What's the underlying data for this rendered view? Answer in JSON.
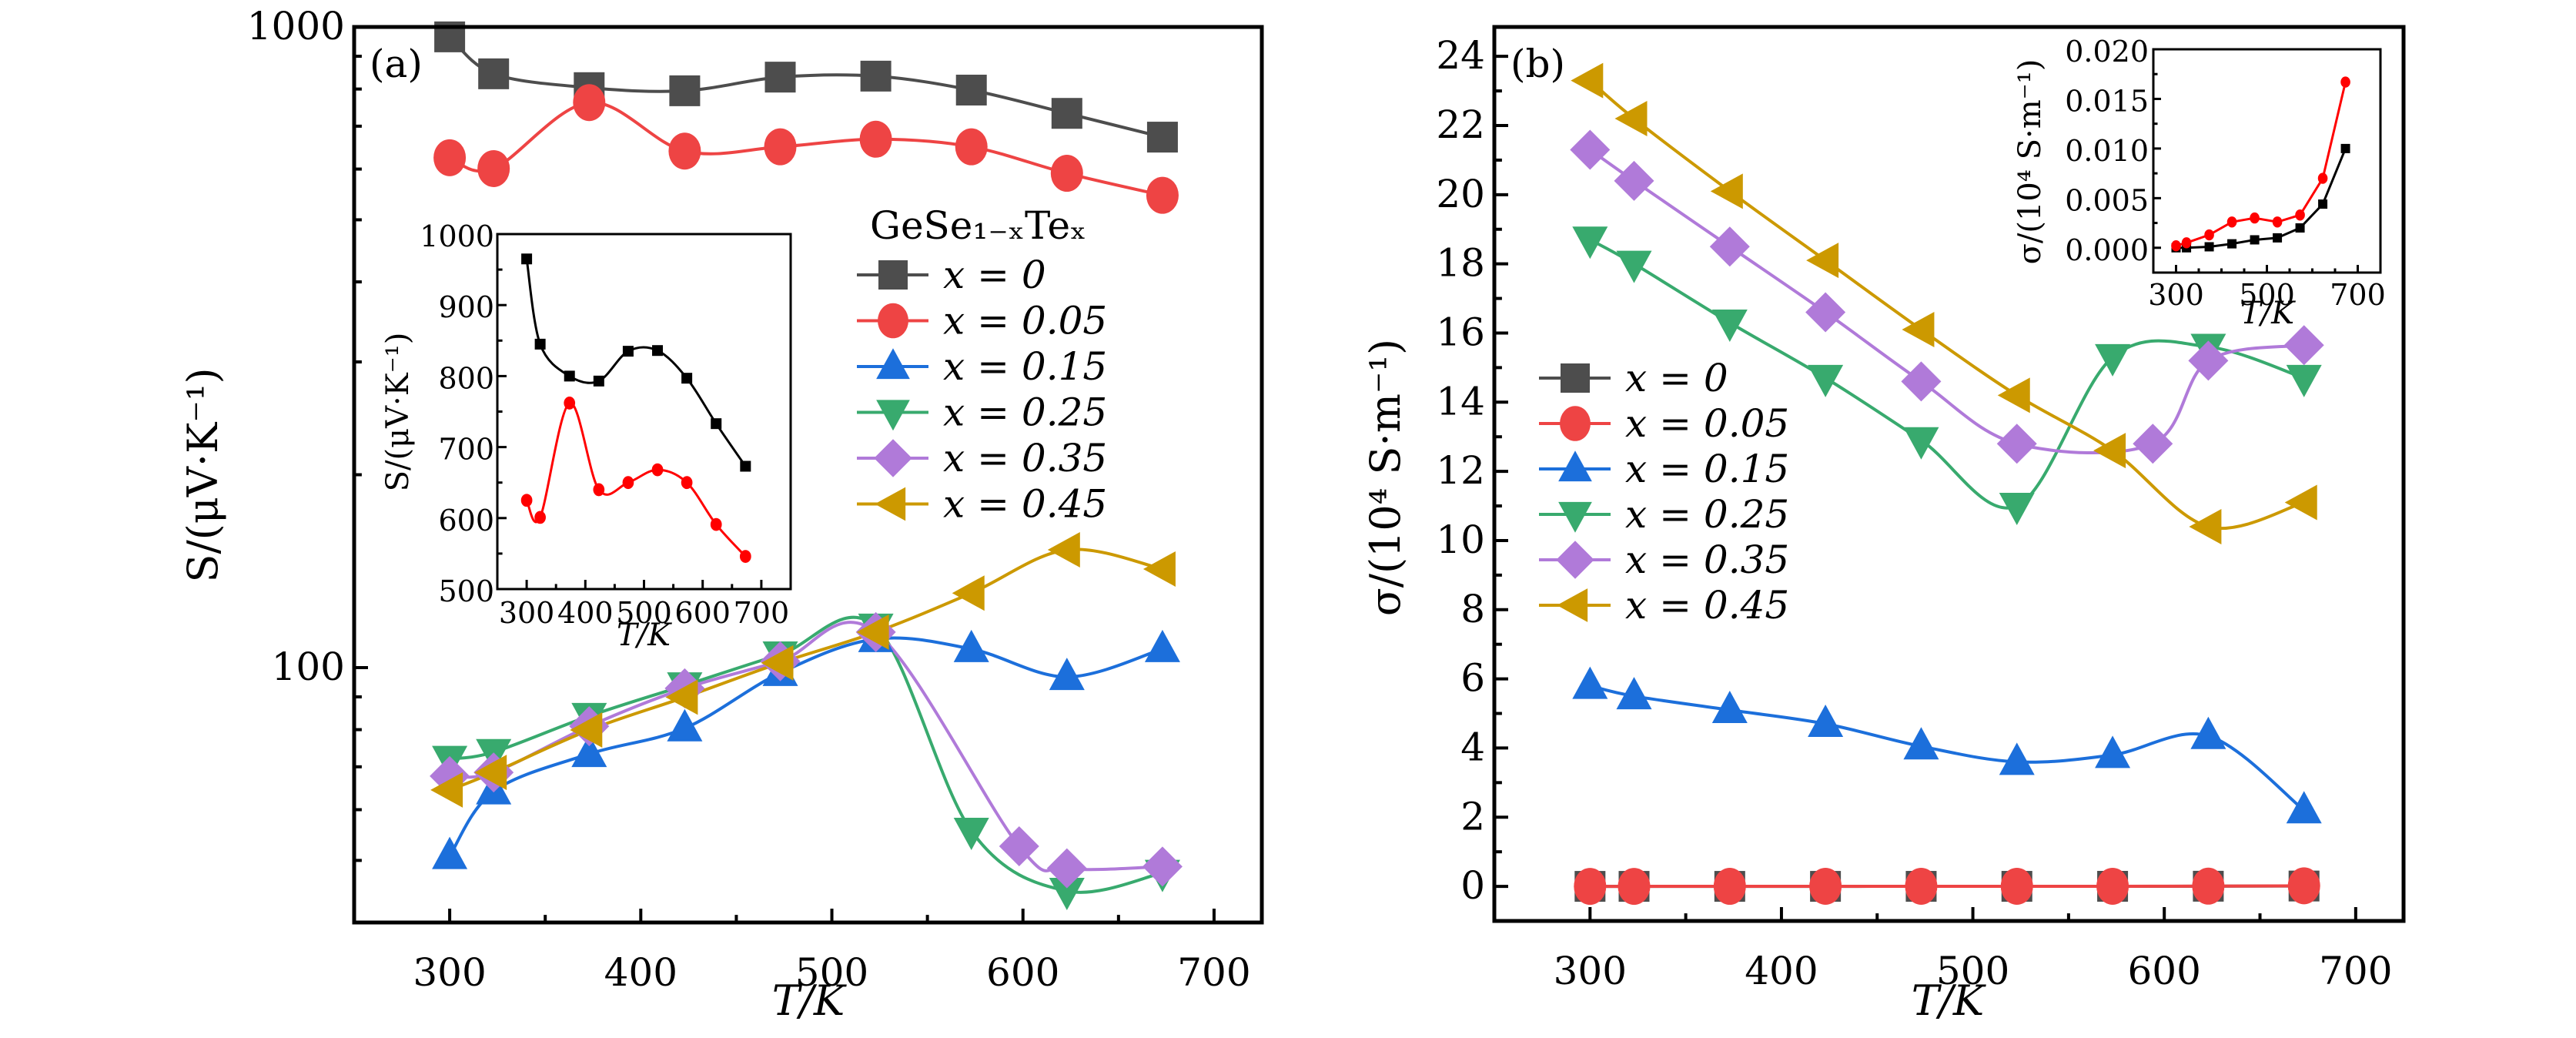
{
  "chart_data": [
    {
      "id": "a",
      "type": "line",
      "panel_label": "(a)",
      "title": "",
      "xlabel": "T/K",
      "ylabel": "S/(μV·K⁻¹)",
      "xlim": [
        250,
        725
      ],
      "ylim": [
        40,
        1000
      ],
      "yscale": "log",
      "xticks": [
        300,
        400,
        500,
        600,
        700
      ],
      "yticks_labeled": [
        100,
        1000
      ],
      "grid": false,
      "legend": {
        "title": "GeSe₁₋ₓTeₓ",
        "placement": "right-middle",
        "entries": [
          "x = 0",
          "x = 0.05",
          "x = 0.15",
          "x = 0.25",
          "x = 0.35",
          "x = 0.45"
        ]
      },
      "series": [
        {
          "name": "x = 0",
          "marker": "square",
          "color": "#4d4d4d",
          "x": [
            300,
            323,
            373,
            423,
            473,
            523,
            573,
            623,
            673
          ],
          "y": [
            965,
            845,
            804,
            795,
            835,
            838,
            797,
            733,
            673
          ]
        },
        {
          "name": "x = 0.05",
          "marker": "circle",
          "color": "#ee4444",
          "x": [
            300,
            323,
            373,
            423,
            473,
            523,
            573,
            623,
            673
          ],
          "y": [
            625,
            601,
            762,
            640,
            650,
            668,
            650,
            591,
            546
          ]
        },
        {
          "name": "x = 0.15",
          "marker": "triangle-up",
          "color": "#1c6fdb",
          "x": [
            300,
            323,
            373,
            423,
            473,
            523,
            573,
            623,
            673
          ],
          "y": [
            50.8,
            64.1,
            73.3,
            80.4,
            98.1,
            110.8,
            106.9,
            96.7,
            106.9
          ]
        },
        {
          "name": "x = 0.25",
          "marker": "triangle-down",
          "color": "#38aa6e",
          "x": [
            300,
            323,
            373,
            423,
            473,
            523,
            573,
            623,
            673
          ],
          "y": [
            72.0,
            73.8,
            84.0,
            93.8,
            104.8,
            115.8,
            55.6,
            44.8,
            47.8
          ]
        },
        {
          "name": "x = 0.35",
          "marker": "diamond",
          "color": "#b07ad9",
          "x": [
            300,
            323,
            373,
            423,
            473,
            523,
            598,
            623,
            673
          ],
          "y": [
            67.7,
            68.6,
            81.0,
            92.8,
            102.3,
            113.6,
            52.6,
            48.6,
            48.9
          ]
        },
        {
          "name": "x = 0.45",
          "marker": "triangle-left",
          "color": "#cc9900",
          "x": [
            300,
            323,
            373,
            423,
            473,
            523,
            573,
            623,
            673
          ],
          "y": [
            64.4,
            68.6,
            79.9,
            89.9,
            101.7,
            113.6,
            130.7,
            152.7,
            142.5
          ]
        }
      ],
      "inset": {
        "type": "line",
        "xlabel": "T/K",
        "ylabel": "S/(μV·K⁻¹)",
        "xlim": [
          250,
          750
        ],
        "ylim": [
          500,
          1000
        ],
        "xticks": [
          300,
          400,
          500,
          600,
          700
        ],
        "yticks": [
          500,
          600,
          700,
          800,
          900,
          1000
        ],
        "series": [
          {
            "name": "x = 0",
            "marker": "square",
            "color": "#000000",
            "x": [
              300,
              323,
              373,
              423,
              473,
              523,
              573,
              623,
              673
            ],
            "y": [
              965,
              845,
              800,
              793,
              835,
              836,
              797,
              733,
              673
            ]
          },
          {
            "name": "x = 0.05",
            "marker": "circle",
            "color": "#ff0000",
            "x": [
              300,
              323,
              373,
              423,
              473,
              523,
              573,
              623,
              673
            ],
            "y": [
              625,
              601,
              762,
              640,
              650,
              668,
              650,
              591,
              546
            ]
          }
        ]
      }
    },
    {
      "id": "b",
      "type": "line",
      "panel_label": "(b)",
      "title": "",
      "xlabel": "T/K",
      "ylabel": "σ/(10⁴ S·m⁻¹)",
      "xlim": [
        250,
        725
      ],
      "ylim": [
        -1,
        24.85
      ],
      "xticks": [
        300,
        400,
        500,
        600,
        700
      ],
      "yticks": [
        0,
        2,
        4,
        6,
        8,
        10,
        12,
        14,
        16,
        18,
        20,
        22,
        24
      ],
      "grid": false,
      "legend": {
        "placement": "left-middle",
        "entries": [
          "x = 0",
          "x = 0.05",
          "x = 0.15",
          "x = 0.25",
          "x = 0.35",
          "x = 0.45"
        ]
      },
      "series": [
        {
          "name": "x = 0",
          "marker": "square",
          "color": "#4d4d4d",
          "x": [
            300,
            323,
            373,
            423,
            473,
            523,
            573,
            623,
            673
          ],
          "y": [
            0.0,
            0.0,
            0.0001,
            0.0004,
            0.0008,
            0.001,
            0.002,
            0.0044,
            0.01
          ]
        },
        {
          "name": "x = 0.05",
          "marker": "circle",
          "color": "#ee4444",
          "x": [
            300,
            323,
            373,
            423,
            473,
            523,
            573,
            623,
            673
          ],
          "y": [
            0.0002,
            0.0005,
            0.0013,
            0.0026,
            0.003,
            0.0026,
            0.0033,
            0.007,
            0.0167
          ]
        },
        {
          "name": "x = 0.15",
          "marker": "triangle-up",
          "color": "#1c6fdb",
          "x": [
            300,
            323,
            373,
            423,
            473,
            523,
            573,
            623,
            673
          ],
          "y": [
            5.8,
            5.5,
            5.1,
            4.7,
            4.05,
            3.6,
            3.8,
            4.35,
            2.2
          ]
        },
        {
          "name": "x = 0.25",
          "marker": "triangle-down",
          "color": "#38aa6e",
          "x": [
            300,
            323,
            373,
            423,
            473,
            523,
            573,
            623,
            673
          ],
          "y": [
            18.7,
            18.0,
            16.3,
            14.7,
            12.9,
            11.0,
            15.3,
            15.6,
            14.7
          ]
        },
        {
          "name": "x = 0.35",
          "marker": "diamond",
          "color": "#b07ad9",
          "x": [
            300,
            323,
            373,
            423,
            473,
            523,
            594,
            623,
            673
          ],
          "y": [
            21.3,
            20.4,
            18.5,
            16.6,
            14.6,
            12.8,
            12.8,
            15.2,
            15.65
          ]
        },
        {
          "name": "x = 0.45",
          "marker": "triangle-left",
          "color": "#cc9900",
          "x": [
            300,
            323,
            373,
            423,
            473,
            523,
            573,
            623,
            673
          ],
          "y": [
            23.3,
            22.2,
            20.1,
            18.1,
            16.1,
            14.2,
            12.6,
            10.4,
            11.1
          ]
        }
      ],
      "inset": {
        "type": "line",
        "xlabel": "T/K",
        "ylabel": "σ/(10⁴ S·m⁻¹)",
        "xlim": [
          250,
          750
        ],
        "ylim": [
          -0.0025,
          0.02
        ],
        "xticks": [
          300,
          500,
          700
        ],
        "yticks": [
          0.0,
          0.005,
          0.01,
          0.015,
          0.02
        ],
        "ytick_labels": [
          "0.000",
          "0.005",
          "0.010",
          "0.015",
          "0.020"
        ],
        "series": [
          {
            "name": "x = 0",
            "marker": "square",
            "color": "#000000",
            "x": [
              300,
              323,
              373,
              423,
              473,
              523,
              573,
              623,
              673
            ],
            "y": [
              0.0,
              0.0,
              0.0001,
              0.0004,
              0.0008,
              0.001,
              0.002,
              0.0044,
              0.01
            ]
          },
          {
            "name": "x = 0.05",
            "marker": "circle",
            "color": "#ff0000",
            "x": [
              300,
              323,
              373,
              423,
              473,
              523,
              573,
              623,
              673
            ],
            "y": [
              0.0002,
              0.0005,
              0.0013,
              0.0026,
              0.003,
              0.0026,
              0.0033,
              0.007,
              0.0167
            ]
          }
        ]
      }
    }
  ]
}
